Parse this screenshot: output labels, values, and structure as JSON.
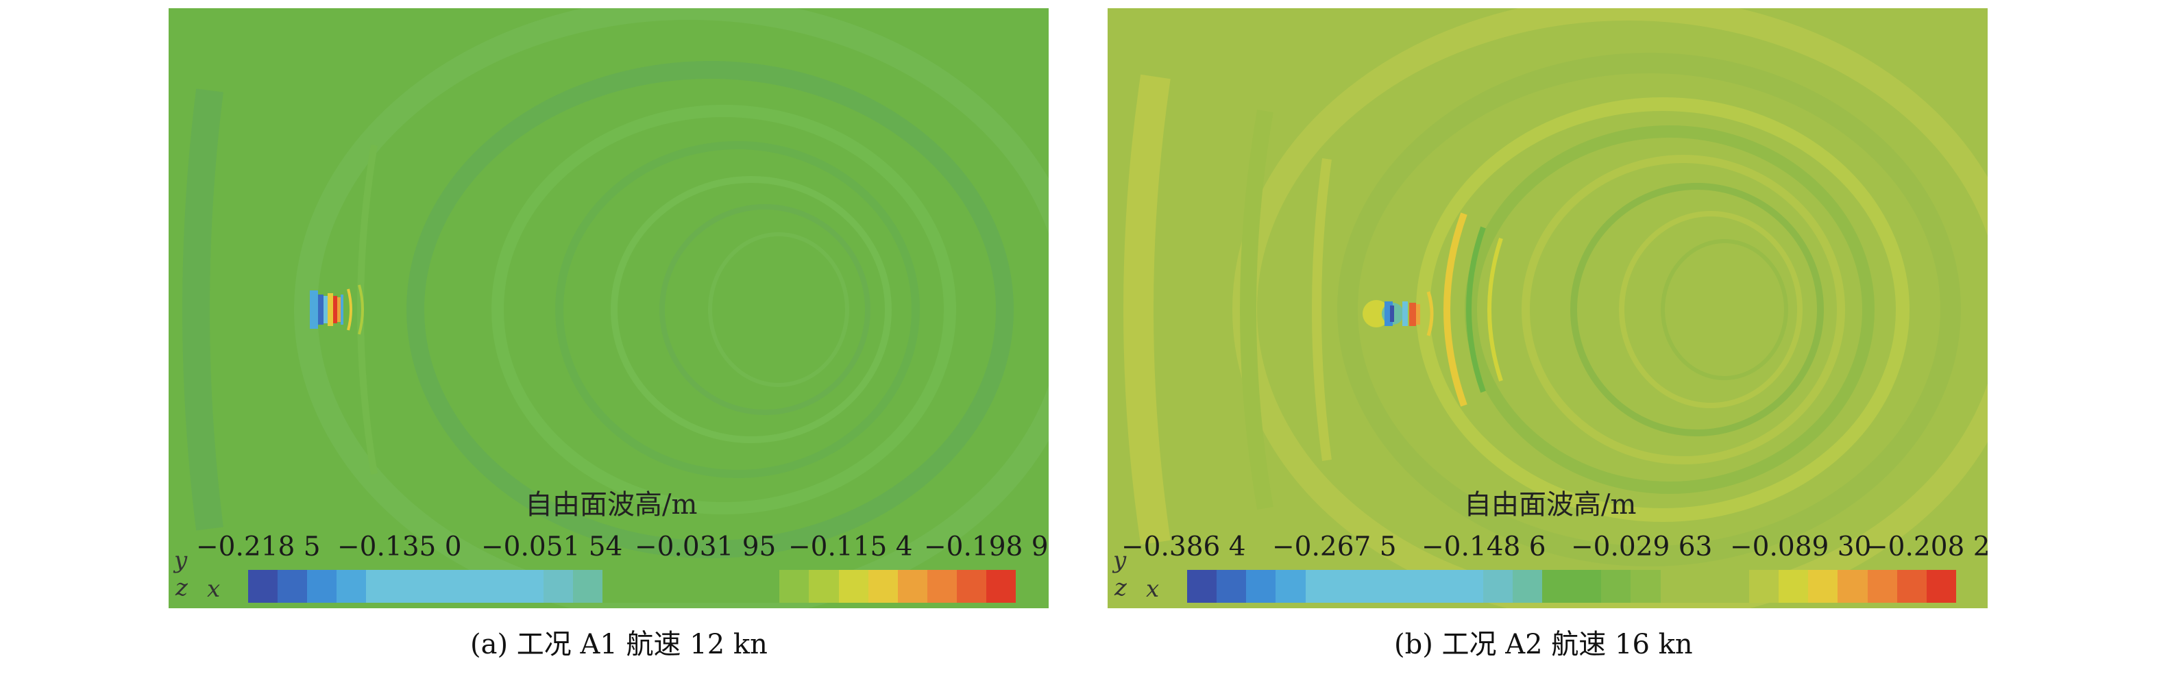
{
  "panels": [
    {
      "legend_title": "自由面波高/m",
      "ticks": [
        "−0.218 5",
        "−0.135 0",
        "−0.051 54",
        "−0.031 95",
        "−0.115 4",
        "−0.198 9"
      ],
      "axes": {
        "y": "y",
        "z": "z",
        "x": "x"
      },
      "caption": "(a) 工况 A1 航速 12 kn",
      "colors": [
        "#3a4fa8",
        "#3a6bc0",
        "#3f8fd6",
        "#4ea9dc",
        "#6cc3dc",
        "#6cc3dc",
        "#6cc3dc",
        "#6cc3dc",
        "#6cc3dc",
        "#6cc3dc",
        "#6ec0c6",
        "#6cbea6",
        "#6db446",
        "#6db446",
        "#6db446",
        "#6db446",
        "#6db446",
        "#6db446",
        "#8fc244",
        "#aecb3e",
        "#d1d33a",
        "#e6c93a",
        "#eca23b",
        "#ec8438",
        "#e65f30",
        "#e03a26"
      ]
    },
    {
      "legend_title": "自由面波高/m",
      "ticks": [
        "−0.386 4",
        "−0.267 5",
        "−0.148 6",
        "−0.029 63",
        "−0.089 30",
        "−0.208 2"
      ],
      "axes": {
        "y": "y",
        "z": "z",
        "x": "x"
      },
      "caption": "(b) 工况 A2 航速 16 kn",
      "colors": [
        "#3a4fa8",
        "#3a6bc0",
        "#3f8fd6",
        "#4ea9dc",
        "#6cc3dc",
        "#6cc3dc",
        "#6cc3dc",
        "#6cc3dc",
        "#6cc3dc",
        "#6cc3dc",
        "#6ec0c6",
        "#6cbea6",
        "#6db446",
        "#6db446",
        "#7db848",
        "#8dbc48",
        "#a3c04a",
        "#a3c04a",
        "#a3c04a",
        "#b8c846",
        "#d1d33a",
        "#e6c93a",
        "#eca23b",
        "#ec8438",
        "#e65f30",
        "#e03a26"
      ]
    }
  ]
}
